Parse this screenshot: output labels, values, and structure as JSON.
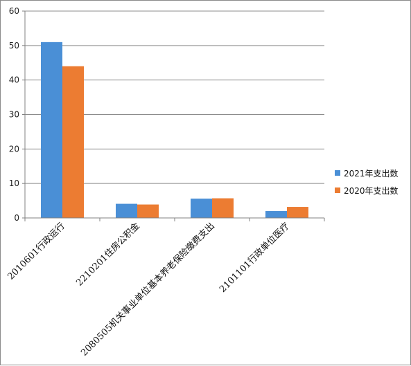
{
  "chart_data": {
    "type": "bar",
    "title": "",
    "xlabel": "",
    "ylabel": "",
    "ylim": [
      0,
      60
    ],
    "yticks": [
      0,
      10,
      20,
      30,
      40,
      50,
      60
    ],
    "grid": true,
    "legend_position": "right",
    "categories": [
      "2010601行政运行",
      "2210201住房公积金",
      "2080505机关事业单位基本养老保险缴费支出",
      "2101101行政单位医疗"
    ],
    "series": [
      {
        "name": "2021年支出数",
        "color": "#4a8fd6",
        "values": [
          51,
          4.1,
          5.6,
          2.0
        ]
      },
      {
        "name": "2020年支出数",
        "color": "#ec7c32",
        "values": [
          44,
          3.9,
          5.7,
          3.2
        ]
      }
    ]
  }
}
